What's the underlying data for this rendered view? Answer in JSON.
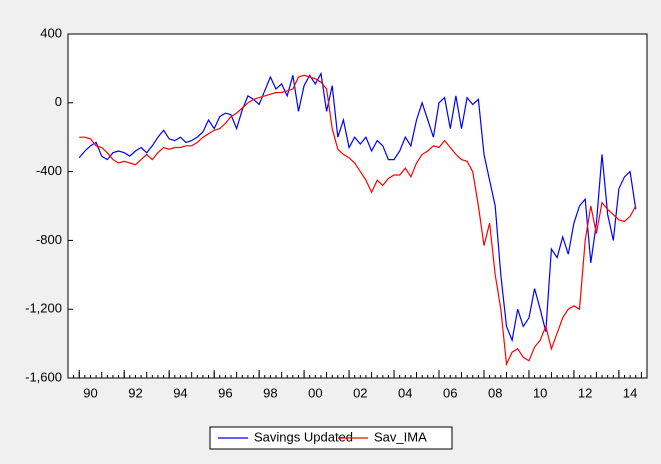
{
  "chart_data": {
    "type": "line",
    "x": [
      90,
      90.25,
      90.5,
      90.75,
      91,
      91.25,
      91.5,
      91.75,
      92,
      92.25,
      92.5,
      92.75,
      93,
      93.25,
      93.5,
      93.75,
      94,
      94.25,
      94.5,
      94.75,
      95,
      95.25,
      95.5,
      95.75,
      96,
      96.25,
      96.5,
      96.75,
      97,
      97.25,
      97.5,
      97.75,
      98,
      98.25,
      98.5,
      98.75,
      99,
      99.25,
      99.5,
      99.75,
      100,
      100.25,
      100.5,
      100.75,
      101,
      101.25,
      101.5,
      101.75,
      102,
      102.25,
      102.5,
      102.75,
      103,
      103.25,
      103.5,
      103.75,
      104,
      104.25,
      104.5,
      104.75,
      105,
      105.25,
      105.5,
      105.75,
      106,
      106.25,
      106.5,
      106.75,
      107,
      107.25,
      107.5,
      107.75,
      108,
      108.25,
      108.5,
      108.75,
      109,
      109.25,
      109.5,
      109.75,
      110,
      110.25,
      110.5,
      110.75,
      111,
      111.25,
      111.5,
      111.75,
      112,
      112.25,
      112.5,
      112.75,
      113,
      113.25,
      113.5,
      113.75,
      114,
      114.25,
      114.5,
      114.75
    ],
    "series": [
      {
        "name": "Savings Updated",
        "color": "#0000ff",
        "values": [
          -320,
          -280,
          -250,
          -230,
          -310,
          -330,
          -290,
          -280,
          -290,
          -310,
          -280,
          -260,
          -290,
          -250,
          -200,
          -160,
          -210,
          -220,
          -200,
          -230,
          -220,
          -200,
          -170,
          -100,
          -150,
          -80,
          -60,
          -70,
          -150,
          -40,
          40,
          20,
          -10,
          70,
          150,
          80,
          110,
          40,
          160,
          -50,
          100,
          160,
          110,
          170,
          -50,
          100,
          -200,
          -100,
          -260,
          -200,
          -240,
          -200,
          -280,
          -220,
          -250,
          -330,
          -330,
          -280,
          -200,
          -250,
          -100,
          0,
          -100,
          -200,
          0,
          30,
          -150,
          40,
          -150,
          30,
          -10,
          20,
          -300,
          -450,
          -600,
          -1000,
          -1300,
          -1380,
          -1200,
          -1300,
          -1250,
          -1080,
          -1200,
          -1330,
          -850,
          -900,
          -780,
          -880,
          -700,
          -600,
          -560,
          -930,
          -700,
          -300,
          -650,
          -800,
          -500,
          -430,
          -400,
          -620
        ]
      },
      {
        "name": "Sav_IMA",
        "color": "#ff0000",
        "values": [
          -200,
          -200,
          -210,
          -250,
          -260,
          -290,
          -330,
          -350,
          -340,
          -350,
          -360,
          -330,
          -300,
          -330,
          -290,
          -260,
          -270,
          -260,
          -260,
          -250,
          -250,
          -230,
          -200,
          -180,
          -160,
          -150,
          -120,
          -80,
          -60,
          -30,
          0,
          20,
          30,
          40,
          50,
          60,
          60,
          70,
          80,
          150,
          160,
          150,
          140,
          120,
          80,
          -150,
          -270,
          -300,
          -320,
          -350,
          -400,
          -450,
          -520,
          -450,
          -480,
          -440,
          -420,
          -420,
          -380,
          -430,
          -350,
          -300,
          -280,
          -250,
          -260,
          -220,
          -260,
          -300,
          -330,
          -340,
          -400,
          -600,
          -830,
          -700,
          -1000,
          -1200,
          -1520,
          -1450,
          -1430,
          -1480,
          -1500,
          -1420,
          -1380,
          -1300,
          -1430,
          -1340,
          -1250,
          -1200,
          -1180,
          -1200,
          -800,
          -600,
          -760,
          -580,
          -620,
          -650,
          -680,
          -690,
          -660,
          -600
        ]
      }
    ],
    "xlim": [
      89.5,
      115.25
    ],
    "xticks": [
      {
        "value": 90,
        "label": "90"
      },
      {
        "value": 92,
        "label": "92"
      },
      {
        "value": 94,
        "label": "94"
      },
      {
        "value": 96,
        "label": "96"
      },
      {
        "value": 98,
        "label": "98"
      },
      {
        "value": 100,
        "label": "00"
      },
      {
        "value": 102,
        "label": "02"
      },
      {
        "value": 104,
        "label": "04"
      },
      {
        "value": 106,
        "label": "06"
      },
      {
        "value": 108,
        "label": "08"
      },
      {
        "value": 110,
        "label": "10"
      },
      {
        "value": 112,
        "label": "12"
      },
      {
        "value": 114,
        "label": "14"
      }
    ],
    "ylim": [
      -1600,
      400
    ],
    "yticks": [
      400,
      0,
      -400,
      -800,
      {
        "value": -1200,
        "label": "-1,200"
      },
      {
        "value": -1600,
        "label": "-1,600"
      }
    ],
    "grid": false
  }
}
